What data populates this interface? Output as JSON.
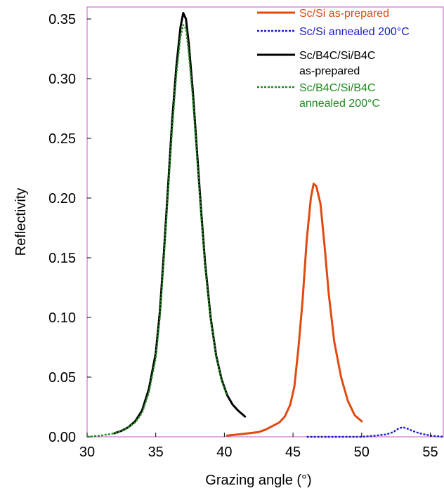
{
  "chart_data": {
    "type": "line",
    "title": "",
    "xlabel": "Grazing angle (°)",
    "ylabel": "Reflectivity",
    "xlim": [
      30,
      56
    ],
    "ylim": [
      0,
      0.36
    ],
    "x_ticks": [
      30,
      35,
      40,
      45,
      50,
      55
    ],
    "y_ticks": [
      0.0,
      0.05,
      0.1,
      0.15,
      0.2,
      0.25,
      0.3,
      0.35
    ],
    "x_tick_labels": [
      "30",
      "35",
      "40",
      "45",
      "50",
      "55"
    ],
    "y_tick_labels": [
      "0.00",
      "0.05",
      "0.10",
      "0.15",
      "0.20",
      "0.25",
      "0.30",
      "0.35"
    ],
    "grid": false,
    "legend_position": "top-right",
    "frame_color": "#d070d0",
    "series": [
      {
        "name": "Sc/Si as-prepared",
        "legend_lines": [
          "Sc/Si as-prepared"
        ],
        "color": "#e04a10",
        "style": "solid",
        "x": [
          40.2,
          41.0,
          41.8,
          42.5,
          43.0,
          43.5,
          44.0,
          44.4,
          44.8,
          45.1,
          45.4,
          45.7,
          46.0,
          46.3,
          46.5,
          46.7,
          47.0,
          47.3,
          47.6,
          48.0,
          48.5,
          49.0,
          49.5,
          50.0
        ],
        "y": [
          0.001,
          0.002,
          0.003,
          0.004,
          0.006,
          0.009,
          0.012,
          0.017,
          0.027,
          0.042,
          0.075,
          0.115,
          0.165,
          0.2,
          0.212,
          0.21,
          0.195,
          0.16,
          0.12,
          0.08,
          0.05,
          0.03,
          0.018,
          0.013
        ]
      },
      {
        "name": "Sc/Si annealed 200°C",
        "legend_lines": [
          "Sc/Si annealed 200°C"
        ],
        "color": "#1a1acc",
        "style": "dashed",
        "x": [
          46.0,
          48.0,
          50.0,
          51.0,
          51.8,
          52.3,
          52.7,
          53.0,
          53.3,
          53.7,
          54.2,
          55.0,
          56.0
        ],
        "y": [
          0.0,
          0.0,
          0.0,
          0.001,
          0.002,
          0.004,
          0.007,
          0.008,
          0.007,
          0.005,
          0.003,
          0.001,
          0.0
        ]
      },
      {
        "name": "Sc/B4C/Si/B4C as-prepared",
        "legend_lines": [
          "Sc/B4C/Si/B4C",
          "as-prepared"
        ],
        "color": "#000000",
        "style": "solid",
        "x": [
          32.0,
          32.5,
          33.0,
          33.5,
          34.0,
          34.5,
          35.0,
          35.3,
          35.6,
          35.9,
          36.2,
          36.5,
          36.8,
          37.0,
          37.2,
          37.4,
          37.7,
          38.0,
          38.3,
          38.6,
          39.0,
          39.4,
          39.8,
          40.2,
          40.6,
          41.0,
          41.5
        ],
        "y": [
          0.003,
          0.005,
          0.008,
          0.013,
          0.022,
          0.04,
          0.07,
          0.105,
          0.155,
          0.21,
          0.265,
          0.31,
          0.343,
          0.355,
          0.35,
          0.33,
          0.29,
          0.24,
          0.19,
          0.145,
          0.1,
          0.068,
          0.048,
          0.035,
          0.027,
          0.022,
          0.017
        ]
      },
      {
        "name": "Sc/B4C/Si/B4C annealed 200°C",
        "legend_lines": [
          "Sc/B4C/Si/B4C",
          "annealed 200°C"
        ],
        "color": "#1f8a1f",
        "style": "dashed",
        "x": [
          30.0,
          31.0,
          32.0,
          32.5,
          33.0,
          33.5,
          34.0,
          34.5,
          35.0,
          35.3,
          35.6,
          35.9,
          36.2,
          36.5,
          36.8,
          37.0,
          37.2,
          37.4,
          37.7,
          38.0,
          38.3,
          38.6,
          39.0,
          39.4,
          39.8,
          40.2
        ],
        "y": [
          0.0,
          0.001,
          0.003,
          0.005,
          0.008,
          0.012,
          0.02,
          0.037,
          0.066,
          0.1,
          0.15,
          0.205,
          0.258,
          0.303,
          0.335,
          0.345,
          0.342,
          0.322,
          0.284,
          0.235,
          0.186,
          0.142,
          0.098,
          0.067,
          0.047,
          0.034
        ]
      }
    ]
  }
}
